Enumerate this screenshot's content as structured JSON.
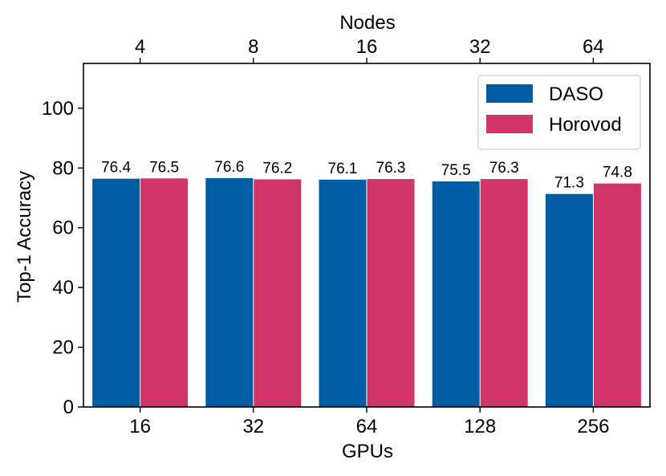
{
  "chart_data": {
    "type": "bar",
    "categories": [
      "16",
      "32",
      "64",
      "128",
      "256"
    ],
    "top_categories": [
      "4",
      "8",
      "16",
      "32",
      "64"
    ],
    "series": [
      {
        "name": "DASO",
        "values": [
          76.4,
          76.6,
          76.1,
          75.5,
          71.3
        ],
        "color": "#005ca3"
      },
      {
        "name": "Horovod",
        "values": [
          76.5,
          76.2,
          76.3,
          76.3,
          74.8
        ],
        "color": "#d13466"
      }
    ],
    "xlabel": "GPUs",
    "top_xlabel": "Nodes",
    "ylabel": "Top-1 Accuracy",
    "ylim": [
      0,
      115
    ],
    "yticks": [
      0,
      20,
      40,
      60,
      80,
      100
    ],
    "legend_position": "top-right",
    "grid": false
  }
}
